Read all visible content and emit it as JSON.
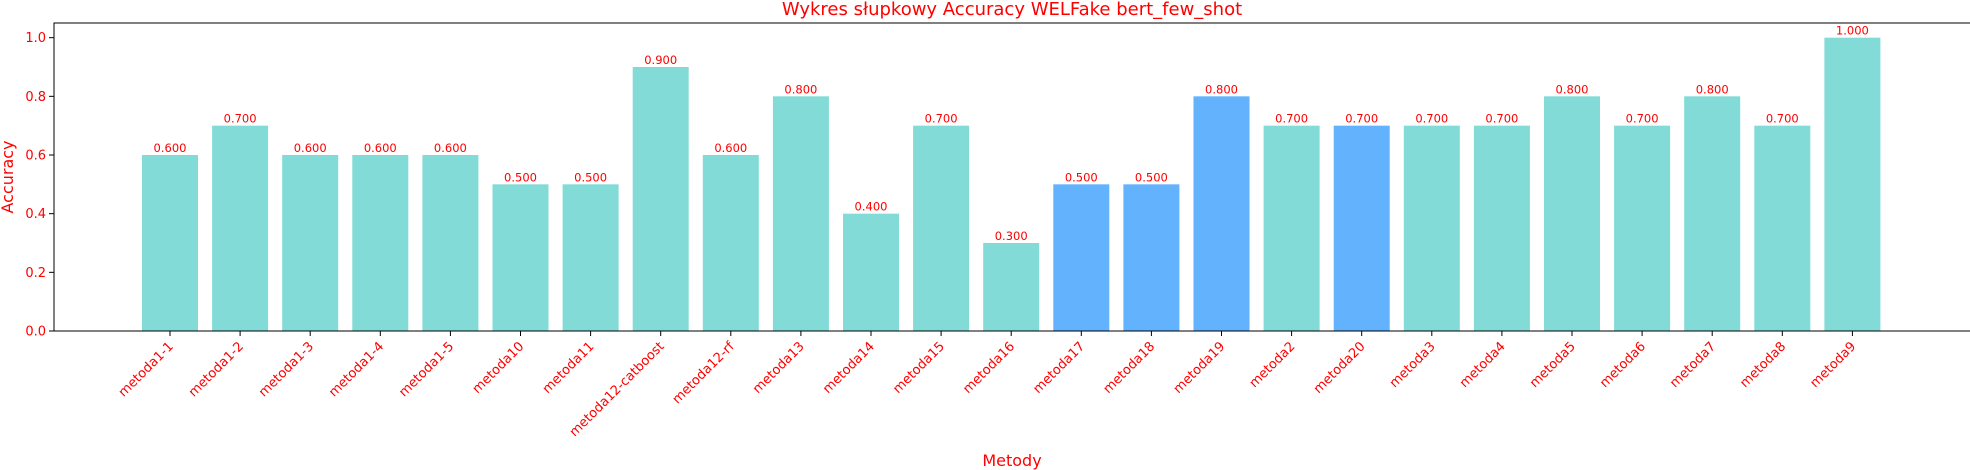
{
  "chart_data": {
    "type": "bar",
    "title": "Wykres słupkowy Accuracy WELFake bert_few_shot",
    "xlabel": "Metody",
    "ylabel": "Accuracy",
    "ylim": [
      0,
      1.05
    ],
    "yticks": [
      0.0,
      0.2,
      0.4,
      0.6,
      0.8,
      1.0
    ],
    "ytick_labels": [
      "0.0",
      "0.2",
      "0.4",
      "0.6",
      "0.8",
      "1.0"
    ],
    "categories": [
      "metoda1-1",
      "metoda1-2",
      "metoda1-3",
      "metoda1-4",
      "metoda1-5",
      "metoda10",
      "metoda11",
      "metoda12-catboost",
      "metoda12-rf",
      "metoda13",
      "metoda14",
      "metoda15",
      "metoda16",
      "metoda17",
      "metoda18",
      "metoda19",
      "metoda2",
      "metoda20",
      "metoda3",
      "metoda4",
      "metoda5",
      "metoda6",
      "metoda7",
      "metoda8",
      "metoda9"
    ],
    "values": [
      0.6,
      0.7,
      0.6,
      0.6,
      0.6,
      0.5,
      0.5,
      0.9,
      0.6,
      0.8,
      0.4,
      0.7,
      0.3,
      0.5,
      0.5,
      0.8,
      0.7,
      0.7,
      0.7,
      0.7,
      0.8,
      0.7,
      0.8,
      0.7,
      1.0
    ],
    "value_labels": [
      "0.600",
      "0.700",
      "0.600",
      "0.600",
      "0.600",
      "0.500",
      "0.500",
      "0.900",
      "0.600",
      "0.800",
      "0.400",
      "0.700",
      "0.300",
      "0.500",
      "0.500",
      "0.800",
      "0.700",
      "0.700",
      "0.700",
      "0.700",
      "0.800",
      "0.700",
      "0.800",
      "0.700",
      "1.000"
    ],
    "highlighted": [
      false,
      false,
      false,
      false,
      false,
      false,
      false,
      false,
      false,
      false,
      false,
      false,
      false,
      true,
      true,
      true,
      false,
      true,
      false,
      false,
      false,
      false,
      false,
      false,
      false
    ],
    "colors": {
      "default": "#82dbd6",
      "highlight": "#62b2fd",
      "text": "#ff0000",
      "axis": "#000000"
    },
    "grid": false,
    "legend": "none"
  }
}
